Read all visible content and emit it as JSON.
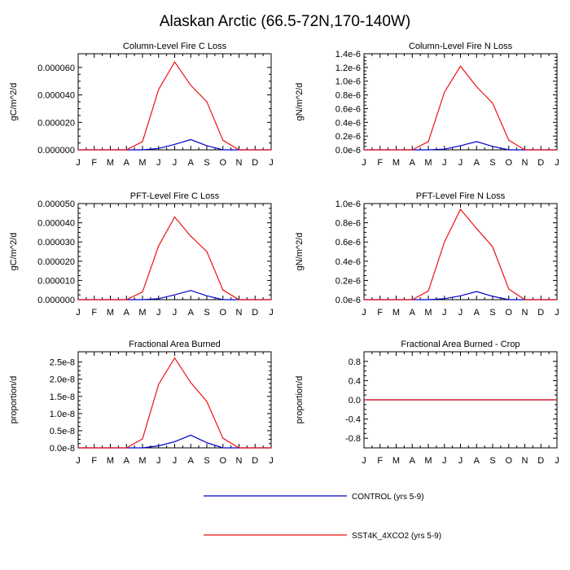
{
  "title": "Alaskan Arctic (66.5-72N,170-140W)",
  "colors": {
    "control": "#0000cc",
    "sst4k": "#ee1111"
  },
  "legend": {
    "placement": "bottom-center",
    "entries": [
      "CONTROL (yrs 5-9)",
      "SST4K_4XCO2 (yrs 5-9)"
    ]
  },
  "chart_data": [
    {
      "type": "line",
      "title": "Column-Level Fire C Loss",
      "ylabel": "gC/m^2/d",
      "ylim": [
        0,
        7e-05
      ],
      "yticks": [
        0,
        2e-05,
        4e-05,
        6e-05
      ],
      "ytick_labels": [
        "0.000000",
        "0.000020",
        "0.000040",
        "0.000060"
      ],
      "x": [
        "J",
        "F",
        "M",
        "A",
        "M",
        "J",
        "J",
        "A",
        "S",
        "O",
        "N",
        "D",
        "J"
      ],
      "series": [
        {
          "name": "CONTROL (yrs 5-9)",
          "values": [
            0,
            0,
            0,
            0,
            0,
            1e-06,
            4e-06,
            7.5e-06,
            3e-06,
            0,
            0,
            0,
            0
          ]
        },
        {
          "name": "SST4K_4XCO2 (yrs 5-9)",
          "values": [
            0,
            0,
            0,
            0,
            6e-06,
            4.4e-05,
            6.4e-05,
            4.7e-05,
            3.5e-05,
            7e-06,
            0,
            0,
            0
          ]
        }
      ]
    },
    {
      "type": "line",
      "title": "Column-Level Fire N Loss",
      "ylabel": "gN/m^2/d",
      "ylim": [
        0,
        1.4e-06
      ],
      "yticks": [
        0,
        2e-07,
        4e-07,
        6e-07,
        8e-07,
        1e-06,
        1.2e-06,
        1.4e-06
      ],
      "ytick_labels": [
        "0.0e-6",
        "0.2e-6",
        "0.4e-6",
        "0.6e-6",
        "0.8e-6",
        "1.0e-6",
        "1.2e-6",
        "1.4e-6"
      ],
      "x": [
        "J",
        "F",
        "M",
        "A",
        "M",
        "J",
        "J",
        "A",
        "S",
        "O",
        "N",
        "D",
        "J"
      ],
      "series": [
        {
          "name": "CONTROL (yrs 5-9)",
          "values": [
            0,
            0,
            0,
            0,
            0,
            1e-08,
            6e-08,
            1.2e-07,
            5e-08,
            0,
            0,
            0,
            0
          ]
        },
        {
          "name": "SST4K_4XCO2 (yrs 5-9)",
          "values": [
            0,
            0,
            0,
            0,
            1.2e-07,
            8.4e-07,
            1.22e-06,
            9.2e-07,
            6.8e-07,
            1.4e-07,
            0,
            0,
            0
          ]
        }
      ]
    },
    {
      "type": "line",
      "title": "PFT-Level Fire C Loss",
      "ylabel": "gC/m^2/d",
      "ylim": [
        0,
        5e-05
      ],
      "yticks": [
        0,
        1e-05,
        2e-05,
        3e-05,
        4e-05,
        5e-05
      ],
      "ytick_labels": [
        "0.000000",
        "0.000010",
        "0.000020",
        "0.000030",
        "0.000040",
        "0.000050"
      ],
      "x": [
        "J",
        "F",
        "M",
        "A",
        "M",
        "J",
        "J",
        "A",
        "S",
        "O",
        "N",
        "D",
        "J"
      ],
      "series": [
        {
          "name": "CONTROL (yrs 5-9)",
          "values": [
            0,
            0,
            0,
            0,
            0,
            5e-07,
            2.5e-06,
            4.8e-06,
            2e-06,
            0,
            0,
            0,
            0
          ]
        },
        {
          "name": "SST4K_4XCO2 (yrs 5-9)",
          "values": [
            0,
            0,
            0,
            0,
            4e-06,
            2.8e-05,
            4.3e-05,
            3.3e-05,
            2.5e-05,
            5e-06,
            0,
            0,
            0
          ]
        }
      ]
    },
    {
      "type": "line",
      "title": "PFT-Level Fire N Loss",
      "ylabel": "gN/m^2/d",
      "ylim": [
        0,
        1e-06
      ],
      "yticks": [
        0,
        2e-07,
        4e-07,
        6e-07,
        8e-07,
        1e-06
      ],
      "ytick_labels": [
        "0.0e-6",
        "0.2e-6",
        "0.4e-6",
        "0.6e-6",
        "0.8e-6",
        "1.0e-6"
      ],
      "x": [
        "J",
        "F",
        "M",
        "A",
        "M",
        "J",
        "J",
        "A",
        "S",
        "O",
        "N",
        "D",
        "J"
      ],
      "series": [
        {
          "name": "CONTROL (yrs 5-9)",
          "values": [
            0,
            0,
            0,
            0,
            0,
            1e-08,
            4e-08,
            8.5e-08,
            3.5e-08,
            0,
            0,
            0,
            0
          ]
        },
        {
          "name": "SST4K_4XCO2 (yrs 5-9)",
          "values": [
            0,
            0,
            0,
            0,
            9e-08,
            6e-07,
            9.4e-07,
            7.4e-07,
            5.5e-07,
            1.1e-07,
            0,
            0,
            0
          ]
        }
      ]
    },
    {
      "type": "line",
      "title": "Fractional Area Burned",
      "ylabel": "proportion/d",
      "ylim": [
        0,
        2.8e-08
      ],
      "yticks": [
        0,
        5e-09,
        1e-08,
        1.5e-08,
        2e-08,
        2.5e-08
      ],
      "ytick_labels": [
        "0.0e-8",
        "0.5e-8",
        "1.0e-8",
        "1.5e-8",
        "2.0e-8",
        "2.5e-8"
      ],
      "x": [
        "J",
        "F",
        "M",
        "A",
        "M",
        "J",
        "J",
        "A",
        "S",
        "O",
        "N",
        "D",
        "J"
      ],
      "series": [
        {
          "name": "CONTROL (yrs 5-9)",
          "values": [
            0,
            0,
            0,
            0,
            0,
            6e-10,
            1.8e-09,
            3.7e-09,
            1.5e-09,
            0,
            0,
            0,
            0
          ]
        },
        {
          "name": "SST4K_4XCO2 (yrs 5-9)",
          "values": [
            0,
            0,
            0,
            0,
            2.6e-09,
            1.85e-08,
            2.62e-08,
            1.9e-08,
            1.35e-08,
            2.8e-09,
            0,
            0,
            0
          ]
        }
      ]
    },
    {
      "type": "line",
      "title": "Fractional Area Burned - Crop",
      "ylabel": "proportion/d",
      "ylim": [
        -1,
        1
      ],
      "yticks": [
        -0.8,
        -0.4,
        0,
        0.4,
        0.8
      ],
      "ytick_labels": [
        "-0.8",
        "-0.4",
        "0.0",
        "0.4",
        "0.8"
      ],
      "x": [
        "J",
        "F",
        "M",
        "A",
        "M",
        "J",
        "J",
        "A",
        "S",
        "O",
        "N",
        "D",
        "J"
      ],
      "series": [
        {
          "name": "CONTROL (yrs 5-9)",
          "values": [
            0,
            0,
            0,
            0,
            0,
            0,
            0,
            0,
            0,
            0,
            0,
            0,
            0
          ]
        },
        {
          "name": "SST4K_4XCO2 (yrs 5-9)",
          "values": [
            0,
            0,
            0,
            0,
            0,
            0,
            0,
            0,
            0,
            0,
            0,
            0,
            0
          ]
        }
      ]
    }
  ]
}
